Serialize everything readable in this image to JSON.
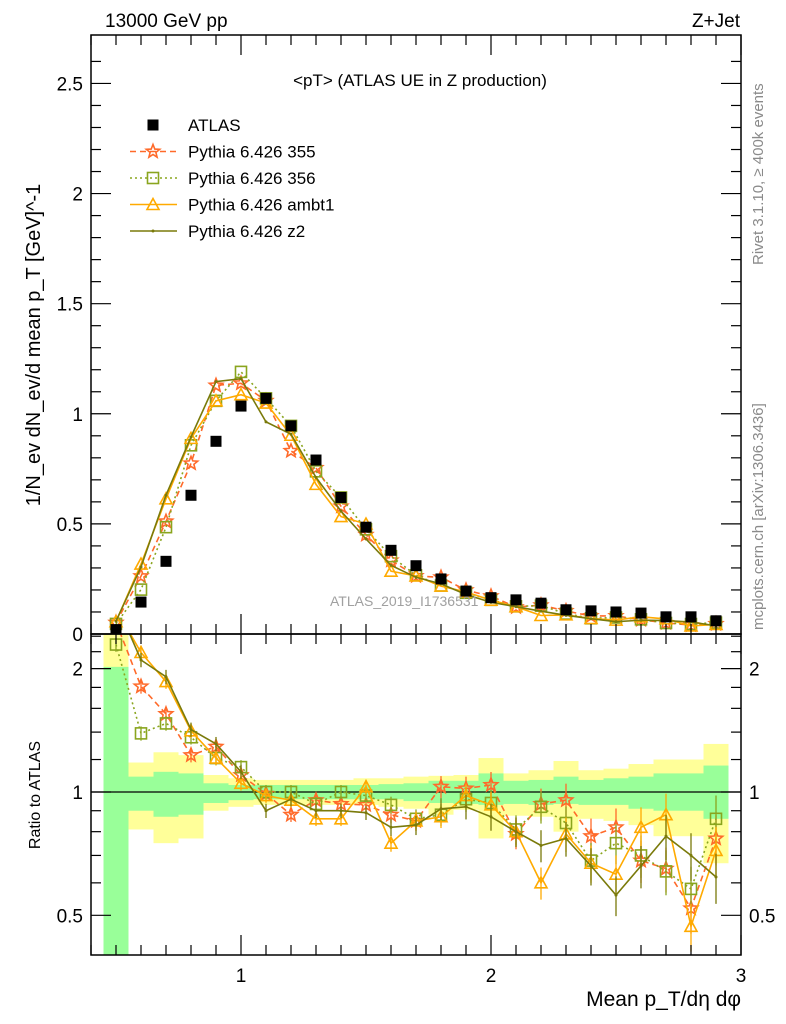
{
  "header": {
    "left": "13000 GeV pp",
    "right": "Z+Jet"
  },
  "side_labels": {
    "top": "Rivet 3.1.10, ≥ 400k events",
    "bottom": "mcplots.cern.ch [arXiv:1306.3436]"
  },
  "watermark": "ATLAS_2019_I1736531",
  "chart_data": {
    "type": "scatter",
    "title": "<pT> (ATLAS UE in Z production)",
    "xlabel": "Mean p_T/dη dφ",
    "ylabel": "1/N_ev dN_ev/d mean p_T [GeV]^-1",
    "ratio_ylabel": "Ratio to ATLAS",
    "xlim": [
      0.4,
      3.0
    ],
    "ylim": [
      0,
      2.72
    ],
    "ratio_ylim": [
      0.4,
      2.43
    ],
    "ratio_scale": "log",
    "xticks": [
      "1",
      "2",
      "3"
    ],
    "yticks": [
      "0",
      "0.5",
      "1",
      "1.5",
      "2",
      "2.5"
    ],
    "ratio_yticks": [
      "0.5",
      "1",
      "2"
    ],
    "legend_position": "top-left",
    "x": [
      0.5,
      0.6,
      0.7,
      0.8,
      0.9,
      1.0,
      1.1,
      1.2,
      1.3,
      1.4,
      1.5,
      1.6,
      1.7,
      1.8,
      1.9,
      2.0,
      2.1,
      2.2,
      2.3,
      2.4,
      2.5,
      2.6,
      2.7,
      2.8,
      2.9
    ],
    "data": {
      "name": "ATLAS",
      "color": "#000000",
      "values": [
        0.02,
        0.145,
        0.33,
        0.63,
        0.875,
        1.035,
        1.07,
        0.945,
        0.79,
        0.62,
        0.485,
        0.38,
        0.31,
        0.25,
        0.195,
        0.165,
        0.155,
        0.14,
        0.11,
        0.105,
        0.1,
        0.095,
        0.078,
        0.078,
        0.06
      ],
      "stat_band": [
        [
          0.3,
          2.02
        ],
        [
          0.9,
          1.09
        ],
        [
          0.87,
          1.12
        ],
        [
          0.88,
          1.11
        ],
        [
          0.94,
          1.05
        ],
        [
          0.955,
          1.04
        ],
        [
          0.96,
          1.04
        ],
        [
          0.96,
          1.04
        ],
        [
          0.96,
          1.04
        ],
        [
          0.96,
          1.04
        ],
        [
          0.96,
          1.04
        ],
        [
          0.96,
          1.045
        ],
        [
          0.95,
          1.05
        ],
        [
          0.94,
          1.065
        ],
        [
          0.935,
          1.065
        ],
        [
          0.93,
          1.11
        ],
        [
          0.935,
          1.065
        ],
        [
          0.93,
          1.07
        ],
        [
          0.935,
          1.09
        ],
        [
          0.93,
          1.07
        ],
        [
          0.93,
          1.08
        ],
        [
          0.91,
          1.09
        ],
        [
          0.9,
          1.11
        ],
        [
          0.9,
          1.11
        ],
        [
          0.86,
          1.16
        ]
      ],
      "total_band": [
        [
          0.3,
          2.5
        ],
        [
          0.81,
          1.18
        ],
        [
          0.75,
          1.25
        ],
        [
          0.77,
          1.23
        ],
        [
          0.9,
          1.1
        ],
        [
          0.92,
          1.08
        ],
        [
          0.93,
          1.07
        ],
        [
          0.93,
          1.07
        ],
        [
          0.93,
          1.07
        ],
        [
          0.93,
          1.07
        ],
        [
          0.93,
          1.08
        ],
        [
          0.92,
          1.08
        ],
        [
          0.91,
          1.09
        ],
        [
          0.88,
          1.095
        ],
        [
          0.905,
          1.1
        ],
        [
          0.77,
          1.21
        ],
        [
          0.875,
          1.11
        ],
        [
          0.87,
          1.13
        ],
        [
          0.8,
          1.19
        ],
        [
          0.86,
          1.13
        ],
        [
          0.85,
          1.14
        ],
        [
          0.83,
          1.17
        ],
        [
          0.78,
          1.2
        ],
        [
          0.78,
          1.2
        ],
        [
          0.67,
          1.31
        ]
      ]
    },
    "series": [
      {
        "name": "Pythia 6.426 355",
        "color": "#ff6a2a",
        "marker": "star",
        "dash": "6,4",
        "ratio": [
          2.6,
          1.81,
          1.55,
          1.23,
          1.29,
          1.1,
          0.99,
          0.88,
          0.955,
          0.935,
          0.93,
          0.88,
          0.85,
          1.03,
          1.02,
          1.04,
          0.79,
          0.935,
          0.955,
          0.78,
          0.82,
          0.68,
          0.65,
          0.52,
          0.77
        ]
      },
      {
        "name": "Pythia 6.426 356",
        "color": "#8aa51e",
        "marker": "square",
        "dash": "2,3",
        "ratio": [
          2.29,
          1.39,
          1.47,
          1.36,
          1.21,
          1.15,
          1.0,
          1.0,
          0.935,
          1.0,
          0.98,
          0.93,
          0.86,
          0.88,
          0.96,
          0.94,
          0.81,
          0.92,
          0.84,
          0.68,
          0.75,
          0.7,
          0.64,
          0.58,
          0.86
        ]
      },
      {
        "name": "Pythia 6.426 ambt1",
        "color": "#ffaa00",
        "marker": "triangle",
        "dash": "",
        "ratio": [
          2.8,
          2.19,
          1.86,
          1.41,
          1.21,
          1.05,
          0.98,
          0.955,
          0.86,
          0.86,
          1.03,
          0.75,
          0.85,
          0.87,
          0.98,
          0.93,
          0.8,
          0.6,
          0.79,
          0.67,
          0.63,
          0.82,
          0.88,
          0.47,
          0.72
        ]
      },
      {
        "name": "Pythia 6.426 z2",
        "color": "#7a7a0a",
        "marker": "dot",
        "dash": "",
        "ratio": [
          2.9,
          2.1,
          1.91,
          1.42,
          1.31,
          1.12,
          0.9,
          0.96,
          0.9,
          0.9,
          0.89,
          0.82,
          0.83,
          0.91,
          0.92,
          0.87,
          0.8,
          0.74,
          0.77,
          0.66,
          0.56,
          0.66,
          0.78,
          0.7,
          0.62
        ]
      }
    ]
  }
}
